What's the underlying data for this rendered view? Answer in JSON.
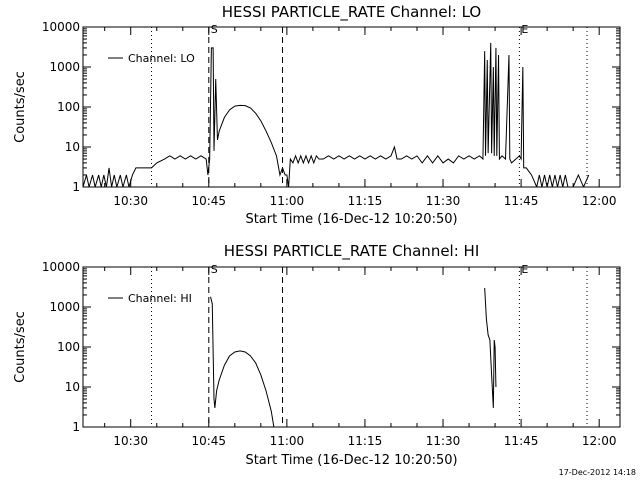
{
  "chart_data": [
    {
      "type": "line",
      "title": "HESSI PARTICLE_RATE Channel: LO",
      "xlabel": "Start Time (16-Dec-12 10:20:50)",
      "ylabel": "Counts/sec",
      "y_scale": "log",
      "ylim": [
        1,
        10000
      ],
      "y_ticks": [
        "1",
        "10",
        "100",
        "1000",
        "10000"
      ],
      "xlim": [
        "10:20:50",
        "12:04:00"
      ],
      "x_ticks": [
        "10:30",
        "10:45",
        "11:00",
        "11:15",
        "11:30",
        "11:45",
        "12:00"
      ],
      "legend": {
        "label": "Channel: LO",
        "position": "top-left"
      },
      "markers": [
        {
          "label": "S",
          "time": "10:45:00",
          "style": "dashed"
        },
        {
          "label": "",
          "time": "10:59:10",
          "style": "dashed"
        },
        {
          "label": "",
          "time": "10:34:00",
          "style": "dotted"
        },
        {
          "label": "E",
          "time": "11:44:40",
          "style": "dotted"
        },
        {
          "label": "",
          "time": "11:57:40",
          "style": "dotted"
        }
      ],
      "series": [
        {
          "segments": [
            [
              [
                "10:20:50",
                1
              ],
              [
                "10:21:30",
                2
              ],
              [
                "10:22:00",
                1
              ],
              [
                "10:22:40",
                2
              ],
              [
                "10:23:10",
                1
              ],
              [
                "10:23:50",
                2
              ],
              [
                "10:24:20",
                1
              ],
              [
                "10:24:50",
                2
              ],
              [
                "10:25:20",
                1
              ],
              [
                "10:25:50",
                3
              ],
              [
                "10:26:20",
                1
              ],
              [
                "10:26:50",
                2
              ],
              [
                "10:27:20",
                1
              ],
              [
                "10:28:00",
                2
              ],
              [
                "10:28:30",
                1
              ],
              [
                "10:29:10",
                2
              ],
              [
                "10:29:40",
                1
              ],
              [
                "10:30:20",
                2
              ],
              [
                "10:31:00",
                3
              ],
              [
                "10:32:00",
                3
              ],
              [
                "10:33:00",
                3
              ],
              [
                "10:34:00",
                3
              ],
              [
                "10:35:00",
                4
              ],
              [
                "10:36:30",
                5
              ],
              [
                "10:37:30",
                6
              ],
              [
                "10:38:30",
                5
              ],
              [
                "10:39:30",
                6
              ],
              [
                "10:40:30",
                5
              ],
              [
                "10:41:30",
                6
              ],
              [
                "10:42:30",
                5
              ],
              [
                "10:43:30",
                6
              ],
              [
                "10:44:30",
                5
              ],
              [
                "10:44:50",
                2
              ],
              [
                "10:45:10",
                5
              ],
              [
                "10:45:30",
                3000
              ],
              [
                "10:45:50",
                3000
              ],
              [
                "10:46:00",
                8
              ],
              [
                "10:46:20",
                500
              ],
              [
                "10:46:40",
                15
              ],
              [
                "10:47:00",
                25
              ],
              [
                "10:48:00",
                55
              ],
              [
                "10:49:00",
                85
              ],
              [
                "10:50:00",
                105
              ],
              [
                "10:51:00",
                110
              ],
              [
                "10:52:00",
                108
              ],
              [
                "10:53:00",
                95
              ],
              [
                "10:54:00",
                70
              ],
              [
                "10:55:00",
                45
              ],
              [
                "10:56:00",
                25
              ],
              [
                "10:57:00",
                13
              ],
              [
                "10:58:00",
                6
              ],
              [
                "10:58:40",
                2
              ],
              [
                "10:59:10",
                3
              ],
              [
                "10:59:40",
                2
              ],
              [
                "11:00:00",
                2
              ],
              [
                "11:00:20",
                1
              ],
              [
                "11:00:40",
                5
              ],
              [
                "11:01:10",
                4
              ],
              [
                "11:01:40",
                6
              ],
              [
                "11:02:10",
                4
              ],
              [
                "11:02:40",
                6
              ],
              [
                "11:03:10",
                4
              ],
              [
                "11:03:40",
                6
              ],
              [
                "11:04:10",
                4
              ],
              [
                "11:04:40",
                6
              ],
              [
                "11:05:10",
                4
              ],
              [
                "11:05:40",
                6
              ],
              [
                "11:06:10",
                5
              ],
              [
                "11:07:00",
                5
              ],
              [
                "11:08:00",
                6
              ],
              [
                "11:09:00",
                5
              ],
              [
                "11:10:00",
                6
              ],
              [
                "11:11:00",
                5
              ],
              [
                "11:12:00",
                6
              ],
              [
                "11:13:00",
                5
              ],
              [
                "11:14:00",
                6
              ],
              [
                "11:15:00",
                5
              ],
              [
                "11:16:00",
                6
              ],
              [
                "11:17:00",
                5
              ],
              [
                "11:18:00",
                6
              ],
              [
                "11:19:00",
                5
              ],
              [
                "11:20:00",
                6
              ],
              [
                "11:20:40",
                10
              ],
              [
                "11:21:10",
                5
              ],
              [
                "11:22:00",
                5
              ],
              [
                "11:23:00",
                6
              ],
              [
                "11:24:00",
                5
              ],
              [
                "11:25:00",
                6
              ],
              [
                "11:26:00",
                4
              ],
              [
                "11:27:00",
                6
              ],
              [
                "11:28:00",
                4
              ],
              [
                "11:29:00",
                6
              ],
              [
                "11:30:00",
                4
              ],
              [
                "11:31:00",
                5
              ],
              [
                "11:32:00",
                4
              ],
              [
                "11:33:00",
                6
              ],
              [
                "11:34:00",
                5
              ],
              [
                "11:35:00",
                6
              ],
              [
                "11:36:00",
                5
              ],
              [
                "11:37:00",
                6
              ],
              [
                "11:37:40",
                5
              ],
              [
                "11:38:00",
                2500
              ],
              [
                "11:38:10",
                6
              ],
              [
                "11:38:30",
                1500
              ],
              [
                "11:38:40",
                7
              ],
              [
                "11:39:10",
                4000
              ],
              [
                "11:39:20",
                7
              ],
              [
                "11:39:40",
                1000
              ],
              [
                "11:39:50",
                6
              ],
              [
                "11:40:10",
                3000
              ],
              [
                "11:40:20",
                6
              ],
              [
                "11:40:40",
                2000
              ],
              [
                "11:40:50",
                5
              ],
              [
                "11:41:20",
                6
              ],
              [
                "11:42:00",
                5
              ],
              [
                "11:42:40",
                2000
              ],
              [
                "11:42:50",
                5
              ],
              [
                "11:43:10",
                4
              ],
              [
                "11:44:00",
                5
              ],
              [
                "11:44:40",
                6
              ],
              [
                "11:45:00",
                5
              ],
              [
                "11:45:20",
                1000
              ],
              [
                "11:45:30",
                3
              ],
              [
                "11:46:00",
                3
              ],
              [
                "11:47:00",
                2
              ],
              [
                "11:48:00",
                1
              ],
              [
                "11:48:30",
                2
              ],
              [
                "11:49:00",
                1
              ],
              [
                "11:49:30",
                2
              ],
              [
                "11:50:00",
                1
              ],
              [
                "11:50:30",
                2
              ],
              [
                "11:51:00",
                1
              ],
              [
                "11:51:30",
                2
              ],
              [
                "11:52:00",
                1
              ],
              [
                "11:52:30",
                2
              ],
              [
                "11:53:00",
                1
              ],
              [
                "11:53:30",
                2
              ],
              [
                "11:54:00",
                1
              ],
              [
                "11:55:00",
                1
              ],
              [
                "11:56:00",
                2
              ],
              [
                "11:57:00",
                1
              ],
              [
                "11:58:00",
                2
              ]
            ]
          ]
        }
      ]
    },
    {
      "type": "line",
      "title": "HESSI PARTICLE_RATE Channel: HI",
      "xlabel": "Start Time (16-Dec-12 10:20:50)",
      "ylabel": "Counts/sec",
      "y_scale": "log",
      "ylim": [
        1,
        10000
      ],
      "y_ticks": [
        "1",
        "10",
        "100",
        "1000",
        "10000"
      ],
      "xlim": [
        "10:20:50",
        "12:04:00"
      ],
      "x_ticks": [
        "10:30",
        "10:45",
        "11:00",
        "11:15",
        "11:30",
        "11:45",
        "12:00"
      ],
      "legend": {
        "label": "Channel: HI",
        "position": "top-left"
      },
      "markers": [
        {
          "label": "S",
          "time": "10:45:00",
          "style": "dashed"
        },
        {
          "label": "",
          "time": "10:59:10",
          "style": "dashed"
        },
        {
          "label": "",
          "time": "10:34:00",
          "style": "dotted"
        },
        {
          "label": "E",
          "time": "11:44:40",
          "style": "dotted"
        },
        {
          "label": "",
          "time": "11:57:40",
          "style": "dotted"
        }
      ],
      "series": [
        {
          "segments": [
            [
              [
                "10:45:20",
                1800
              ],
              [
                "10:45:40",
                1200
              ],
              [
                "10:46:00",
                5
              ],
              [
                "10:46:10",
                3
              ],
              [
                "10:46:30",
                8
              ],
              [
                "10:47:00",
                15
              ],
              [
                "10:48:00",
                35
              ],
              [
                "10:49:00",
                60
              ],
              [
                "10:50:00",
                75
              ],
              [
                "10:51:00",
                80
              ],
              [
                "10:52:00",
                75
              ],
              [
                "10:53:00",
                60
              ],
              [
                "10:54:00",
                40
              ],
              [
                "10:55:00",
                20
              ],
              [
                "10:56:00",
                8
              ],
              [
                "10:57:00",
                2.5
              ],
              [
                "10:57:30",
                1
              ]
            ],
            [
              [
                "11:38:00",
                3000
              ],
              [
                "11:38:20",
                500
              ],
              [
                "11:38:40",
                200
              ],
              [
                "11:39:00",
                150
              ],
              [
                "11:39:20",
                20
              ],
              [
                "11:39:40",
                3
              ],
              [
                "11:39:50",
                150
              ],
              [
                "11:40:00",
                100
              ],
              [
                "11:40:10",
                10
              ]
            ]
          ]
        }
      ]
    }
  ],
  "footer": {
    "timestamp": "17-Dec-2012 14:18"
  }
}
